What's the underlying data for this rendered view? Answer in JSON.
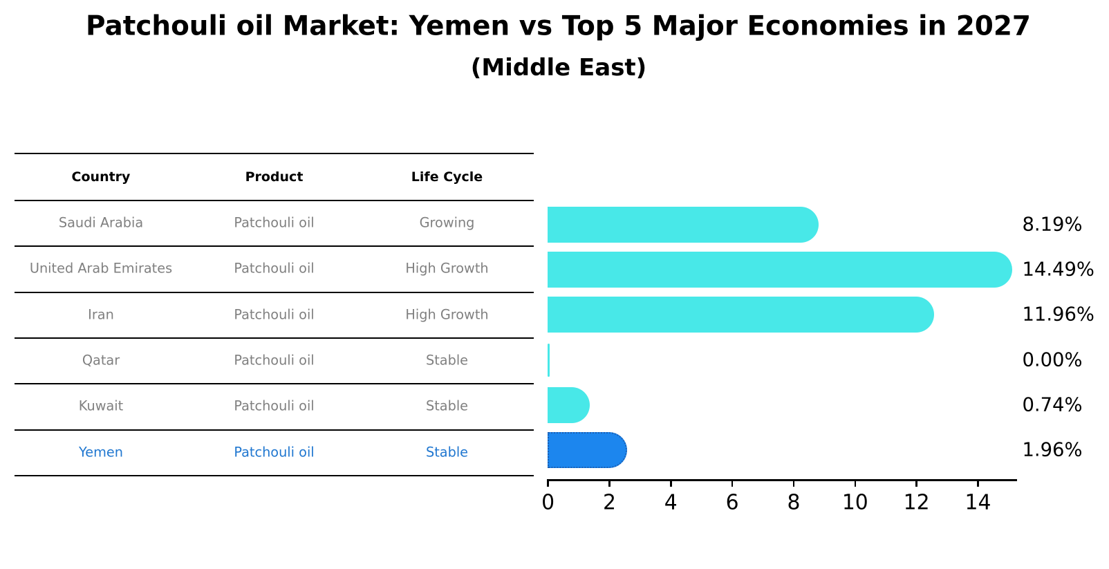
{
  "title": "Patchouli oil Market: Yemen vs Top 5 Major Economies in 2027",
  "subtitle": "(Middle East)",
  "table": {
    "columns": [
      "Country",
      "Product",
      "Life Cycle"
    ],
    "rows": [
      {
        "country": "Saudi Arabia",
        "product": "Patchouli oil",
        "life_cycle": "Growing",
        "highlight": false
      },
      {
        "country": "United Arab Emirates",
        "product": "Patchouli oil",
        "life_cycle": "High Growth",
        "highlight": false
      },
      {
        "country": "Iran",
        "product": "Patchouli oil",
        "life_cycle": "High Growth",
        "highlight": false
      },
      {
        "country": "Qatar",
        "product": "Patchouli oil",
        "life_cycle": "Stable",
        "highlight": false
      },
      {
        "country": "Kuwait",
        "product": "Patchouli oil",
        "life_cycle": "Stable",
        "highlight": false
      },
      {
        "country": "Yemen",
        "product": "Patchouli oil",
        "life_cycle": "Stable",
        "highlight": true
      }
    ]
  },
  "chart_data": {
    "type": "bar",
    "orientation": "horizontal",
    "title": "Patchouli oil Market: Yemen vs Top 5 Major Economies in 2027",
    "subtitle": "(Middle East)",
    "categories": [
      "Saudi Arabia",
      "United Arab Emirates",
      "Iran",
      "Qatar",
      "Kuwait",
      "Yemen"
    ],
    "values": [
      8.19,
      14.49,
      11.96,
      0.0,
      0.74,
      1.96
    ],
    "value_labels": [
      "8.19%",
      "14.49%",
      "11.96%",
      "0.00%",
      "0.74%",
      "1.96%"
    ],
    "highlight_category": "Yemen",
    "xlabel": "",
    "ylabel": "",
    "xlim": [
      0,
      15.3
    ],
    "xticks": [
      0,
      2,
      4,
      6,
      8,
      10,
      12,
      14
    ],
    "grid": false,
    "legend": false
  },
  "colors": {
    "bar_default": "#48E8E8",
    "bar_highlight": "#1C86EE",
    "bar_highlight_border": "#1A5FB4",
    "table_text": "#808080",
    "table_highlight_text": "#2077D0",
    "heading_text": "#000000",
    "axis": "#000000"
  }
}
